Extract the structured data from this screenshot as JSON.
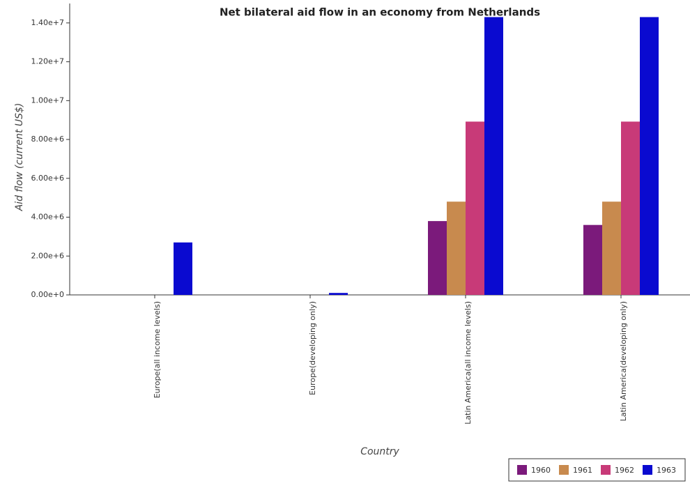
{
  "chart_data": {
    "type": "bar",
    "title": "Net bilateral aid flow in an economy from Netherlands",
    "x_label": "Country",
    "y_label": "Aid flow (current US$)",
    "categories": [
      "Europe(all income levels)",
      "Europe(developing only)",
      "Latin America(all income levels)",
      "Latin America(developing only)"
    ],
    "series": [
      {
        "name": "1960",
        "color": "#7b1a7b",
        "values": [
          0,
          0,
          3800000,
          3600000
        ]
      },
      {
        "name": "1961",
        "color": "#c88a4e",
        "values": [
          0,
          0,
          4800000,
          4800000
        ]
      },
      {
        "name": "1962",
        "color": "#c83a78",
        "values": [
          0,
          0,
          8920000,
          8920000
        ]
      },
      {
        "name": "1963",
        "color": "#0a0ad0",
        "values": [
          2700000,
          100000,
          14300000,
          14300000
        ]
      }
    ],
    "ylim": [
      0,
      15000000
    ],
    "yticks": [
      {
        "value": 0,
        "label": "0.00e+0"
      },
      {
        "value": 2000000,
        "label": "2.00e+6"
      },
      {
        "value": 4000000,
        "label": "4.00e+6"
      },
      {
        "value": 6000000,
        "label": "6.00e+6"
      },
      {
        "value": 8000000,
        "label": "8.00e+6"
      },
      {
        "value": 10000000,
        "label": "1.00e+7"
      },
      {
        "value": 12000000,
        "label": "1.20e+7"
      },
      {
        "value": 14000000,
        "label": "1.40e+7"
      }
    ],
    "grid": false,
    "legend": "bottom-right"
  }
}
